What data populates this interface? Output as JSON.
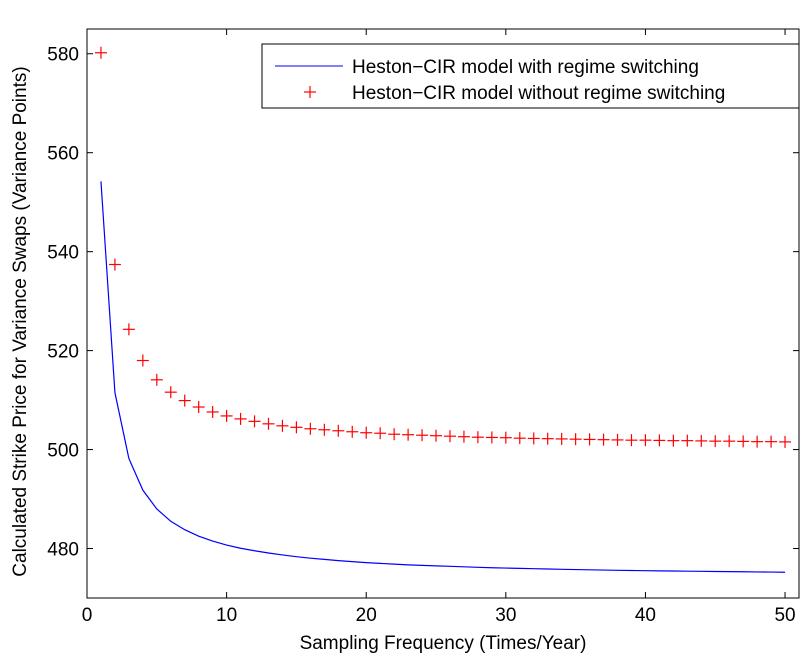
{
  "chart_data": {
    "type": "line",
    "title": "",
    "xlabel": "Sampling Frequency (Times/Year)",
    "ylabel": "Calculated Strike Price for Variance Swaps (Variance Points)",
    "xlim": [
      0,
      51
    ],
    "ylim": [
      470,
      585
    ],
    "xticks": [
      0,
      10,
      20,
      30,
      40,
      50
    ],
    "yticks": [
      480,
      500,
      520,
      540,
      560,
      580
    ],
    "xtick_labels": [
      "0",
      "10",
      "20",
      "30",
      "40",
      "50"
    ],
    "ytick_labels": [
      "480",
      "500",
      "520",
      "540",
      "560",
      "580"
    ],
    "grid": false,
    "legend_position": "top-right",
    "series": [
      {
        "name": "Heston−CIR model with regime switching",
        "style": "line",
        "color": "#0000ff",
        "x": [
          1,
          2,
          3,
          4,
          5,
          6,
          7,
          8,
          9,
          10,
          11,
          12,
          13,
          14,
          15,
          16,
          17,
          18,
          19,
          20,
          21,
          22,
          23,
          24,
          25,
          26,
          27,
          28,
          29,
          30,
          31,
          32,
          33,
          34,
          35,
          36,
          37,
          38,
          39,
          40,
          41,
          42,
          43,
          44,
          45,
          46,
          47,
          48,
          49,
          50
        ],
        "values": [
          554.2,
          511.5,
          498.2,
          491.8,
          488.0,
          485.5,
          483.8,
          482.5,
          481.5,
          480.7,
          480.05,
          479.55,
          479.1,
          478.7,
          478.35,
          478.05,
          477.8,
          477.55,
          477.35,
          477.15,
          477.0,
          476.85,
          476.7,
          476.6,
          476.5,
          476.4,
          476.3,
          476.2,
          476.12,
          476.05,
          475.98,
          475.92,
          475.86,
          475.8,
          475.75,
          475.7,
          475.65,
          475.6,
          475.56,
          475.52,
          475.48,
          475.45,
          475.42,
          475.39,
          475.36,
          475.33,
          475.3,
          475.27,
          475.24,
          475.2
        ]
      },
      {
        "name": "Heston−CIR model without regime switching",
        "style": "marker",
        "marker": "+",
        "color": "#ff0000",
        "x": [
          1,
          2,
          3,
          4,
          5,
          6,
          7,
          8,
          9,
          10,
          11,
          12,
          13,
          14,
          15,
          16,
          17,
          18,
          19,
          20,
          21,
          22,
          23,
          24,
          25,
          26,
          27,
          28,
          29,
          30,
          31,
          32,
          33,
          34,
          35,
          36,
          37,
          38,
          39,
          40,
          41,
          42,
          43,
          44,
          45,
          46,
          47,
          48,
          49,
          50
        ],
        "values": [
          580.2,
          537.4,
          524.3,
          518.0,
          514.1,
          511.6,
          509.9,
          508.6,
          507.6,
          506.8,
          506.2,
          505.7,
          505.2,
          504.8,
          504.5,
          504.2,
          504.0,
          503.8,
          503.6,
          503.4,
          503.3,
          503.1,
          503.0,
          502.9,
          502.8,
          502.7,
          502.6,
          502.5,
          502.45,
          502.4,
          502.3,
          502.25,
          502.2,
          502.15,
          502.1,
          502.05,
          502.0,
          501.95,
          501.9,
          501.9,
          501.85,
          501.8,
          501.8,
          501.75,
          501.7,
          501.7,
          501.65,
          501.6,
          501.6,
          501.55
        ]
      }
    ]
  }
}
